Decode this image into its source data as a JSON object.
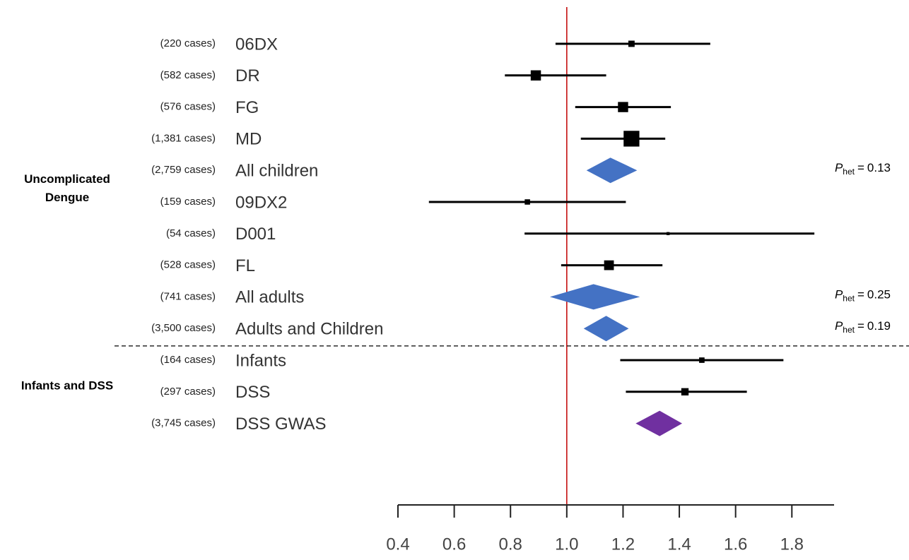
{
  "chart_data": {
    "type": "forest",
    "xlim": [
      0.4,
      1.95
    ],
    "xticks": [
      0.4,
      0.6,
      0.8,
      {
        "value": 1,
        "label": "1.0"
      },
      1.2,
      1.4,
      1.6,
      1.8
    ],
    "reference_line": 1,
    "reference_color": "#c00000",
    "marker_color": "#000000",
    "p_het_label": {
      "symbol": "P",
      "subscript": "het",
      "relation": "="
    },
    "groups": [
      {
        "label": [
          "Uncomplicated",
          "Dengue"
        ],
        "rows": [
          {
            "label": "06DX",
            "case_label": "(220 cases)",
            "cases": 220,
            "estimate": 1.23,
            "lower": 0.96,
            "upper": 1.51,
            "pooled": false
          },
          {
            "label": "DR",
            "case_label": "(582 cases)",
            "cases": 582,
            "estimate": 0.89,
            "lower": 0.78,
            "upper": 1.14,
            "pooled": false
          },
          {
            "label": "FG",
            "case_label": "(576 cases)",
            "cases": 576,
            "estimate": 1.2,
            "lower": 1.03,
            "upper": 1.37,
            "pooled": false
          },
          {
            "label": "MD",
            "case_label": "(1,381 cases)",
            "cases": 1381,
            "estimate": 1.23,
            "lower": 1.05,
            "upper": 1.35,
            "pooled": false
          },
          {
            "label": "All children",
            "case_label": "(2,759 cases)",
            "cases": 2759,
            "estimate": 1.155,
            "lower": 1.07,
            "upper": 1.25,
            "pooled": true,
            "color": "#4472c4",
            "p_het": 0.13
          },
          {
            "label": "09DX2",
            "case_label": "(159 cases)",
            "cases": 159,
            "estimate": 0.86,
            "lower": 0.51,
            "upper": 1.21,
            "pooled": false
          },
          {
            "label": "D001",
            "case_label": "(54 cases)",
            "cases": 54,
            "estimate": 1.36,
            "lower": 0.85,
            "upper": 1.88,
            "pooled": false
          },
          {
            "label": "FL",
            "case_label": "(528 cases)",
            "cases": 528,
            "estimate": 1.15,
            "lower": 0.98,
            "upper": 1.34,
            "pooled": false
          },
          {
            "label": "All adults",
            "case_label": "(741 cases)",
            "cases": 741,
            "estimate": 1.095,
            "lower": 0.94,
            "upper": 1.26,
            "pooled": true,
            "color": "#4472c4",
            "p_het": 0.25
          },
          {
            "label": "Adults and Children",
            "case_label": "(3,500 cases)",
            "cases": 3500,
            "estimate": 1.14,
            "lower": 1.06,
            "upper": 1.22,
            "pooled": true,
            "color": "#4472c4",
            "p_het": 0.19
          }
        ]
      },
      {
        "label": [
          "Infants and DSS"
        ],
        "rows": [
          {
            "label": "Infants",
            "case_label": "(164 cases)",
            "cases": 164,
            "estimate": 1.48,
            "lower": 1.19,
            "upper": 1.77,
            "pooled": false
          },
          {
            "label": "DSS",
            "case_label": "(297 cases)",
            "cases": 297,
            "estimate": 1.42,
            "lower": 1.21,
            "upper": 1.64,
            "pooled": false
          },
          {
            "label": "DSS GWAS",
            "case_label": "(3,745 cases)",
            "cases": 3745,
            "estimate": 1.33,
            "lower": 1.245,
            "upper": 1.41,
            "pooled": true,
            "color": "#7030a0"
          }
        ]
      }
    ]
  }
}
